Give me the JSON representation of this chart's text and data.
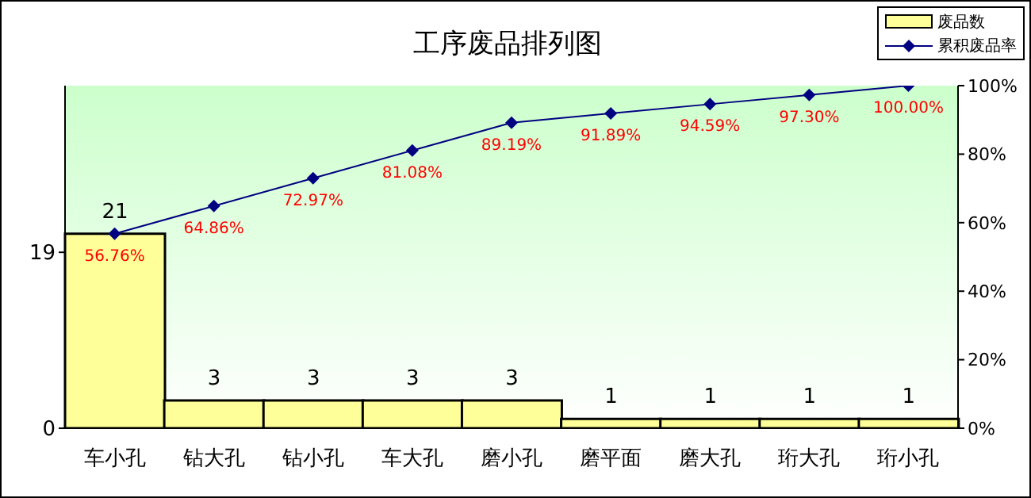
{
  "chart_data": {
    "type": "bar",
    "title": "工序废品排列图",
    "categories": [
      "车小孔",
      "钻大孔",
      "钻小孔",
      "车大孔",
      "磨小孔",
      "磨平面",
      "磨大孔",
      "珩大孔",
      "珩小孔"
    ],
    "series": [
      {
        "name": "废品数",
        "color": "#ffff99",
        "values": [
          21,
          3,
          3,
          3,
          3,
          1,
          1,
          1,
          1
        ],
        "value_labels": [
          "21",
          "3",
          "3",
          "3",
          "3",
          "1",
          "1",
          "1",
          "1"
        ]
      },
      {
        "name": "累积废品率",
        "type": "line",
        "axis": "y2",
        "color": "#000080",
        "marker": "diamond",
        "values": [
          56.76,
          64.86,
          72.97,
          81.08,
          89.19,
          91.89,
          94.59,
          97.3,
          100
        ],
        "value_labels": [
          "56.76%",
          "64.86%",
          "72.97%",
          "81.08%",
          "89.19%",
          "91.89%",
          "94.59%",
          "97.30%",
          "100.00%"
        ]
      }
    ],
    "ylim": [
      0,
      37
    ],
    "yticks": [
      0,
      19
    ],
    "y2lim": [
      0,
      100
    ],
    "y2ticks": [
      {
        "value": 0,
        "label": "0%"
      },
      {
        "value": 20,
        "label": "20%"
      },
      {
        "value": 40,
        "label": "40%"
      },
      {
        "value": 60,
        "label": "60%"
      },
      {
        "value": 80,
        "label": "80%"
      },
      {
        "value": 100,
        "label": "100%"
      }
    ],
    "grid": false,
    "legend": "top right"
  }
}
